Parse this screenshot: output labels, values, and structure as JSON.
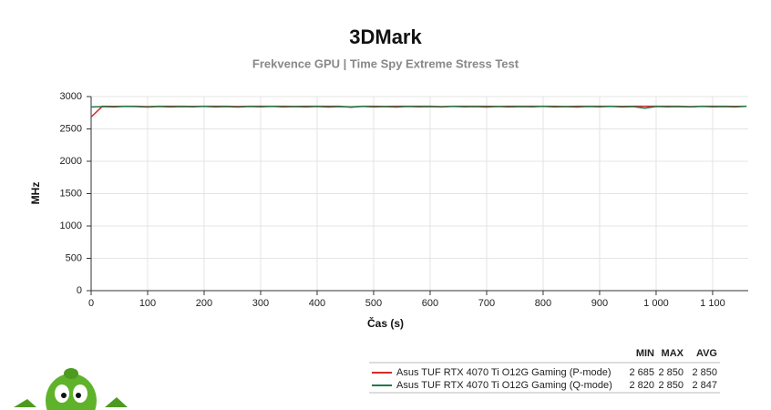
{
  "chart_data": {
    "type": "line",
    "title": "3DMark",
    "subtitle": "Frekvence GPU | Time Spy Extreme Stress Test",
    "x_label": "Čas (s)",
    "y_label": "MHz",
    "x": [
      0,
      20,
      40,
      60,
      80,
      100,
      120,
      140,
      160,
      180,
      200,
      220,
      240,
      260,
      280,
      300,
      320,
      340,
      360,
      380,
      400,
      420,
      440,
      460,
      480,
      500,
      520,
      540,
      560,
      580,
      600,
      620,
      640,
      660,
      680,
      700,
      720,
      740,
      760,
      780,
      800,
      820,
      840,
      860,
      880,
      900,
      920,
      940,
      960,
      980,
      1000,
      1020,
      1040,
      1060,
      1080,
      1100,
      1120,
      1140,
      1160
    ],
    "series": [
      {
        "name": "Asus TUF RTX 4070 Ti O12G Gaming (P-mode)",
        "color": "#d42a2a",
        "values": [
          2685,
          2850,
          2848,
          2850,
          2850,
          2845,
          2850,
          2850,
          2850,
          2848,
          2850,
          2850,
          2850,
          2846,
          2850,
          2850,
          2850,
          2850,
          2848,
          2850,
          2850,
          2850,
          2850,
          2835,
          2850,
          2850,
          2848,
          2850,
          2850,
          2850,
          2850,
          2845,
          2850,
          2850,
          2850,
          2850,
          2848,
          2850,
          2850,
          2850,
          2850,
          2850,
          2846,
          2850,
          2850,
          2850,
          2850,
          2848,
          2850,
          2850,
          2850,
          2850,
          2850,
          2845,
          2850,
          2850,
          2850,
          2848,
          2850
        ],
        "stats": [
          2685,
          2850,
          2850
        ],
        "stats_labels": [
          "2 685",
          "2 850",
          "2 850"
        ]
      },
      {
        "name": "Asus TUF RTX 4070 Ti O12G Gaming (Q-mode)",
        "color": "#1f7a4d",
        "values": [
          2840,
          2845,
          2840,
          2848,
          2845,
          2838,
          2846,
          2840,
          2845,
          2842,
          2848,
          2840,
          2845,
          2838,
          2846,
          2842,
          2848,
          2840,
          2845,
          2840,
          2846,
          2838,
          2845,
          2842,
          2848,
          2840,
          2845,
          2838,
          2846,
          2842,
          2845,
          2840,
          2848,
          2842,
          2845,
          2838,
          2846,
          2840,
          2845,
          2842,
          2848,
          2840,
          2845,
          2838,
          2846,
          2842,
          2848,
          2840,
          2845,
          2820,
          2846,
          2842,
          2845,
          2840,
          2848,
          2842,
          2845,
          2840,
          2850
        ],
        "stats": [
          2820,
          2850,
          2847
        ],
        "stats_labels": [
          "2 820",
          "2 850",
          "2 847"
        ]
      }
    ],
    "stats_headers": [
      "MIN",
      "MAX",
      "AVG"
    ],
    "xlim": [
      0,
      1163
    ],
    "ylim": [
      0,
      3000
    ],
    "xticks": [
      0,
      100,
      200,
      300,
      400,
      500,
      600,
      700,
      800,
      900,
      {
        "value": 1000,
        "label": "1 000"
      },
      {
        "value": 1100,
        "label": "1 100"
      }
    ],
    "yticks": [
      0,
      500,
      1000,
      1500,
      2000,
      2500,
      3000
    ],
    "grid": true
  }
}
